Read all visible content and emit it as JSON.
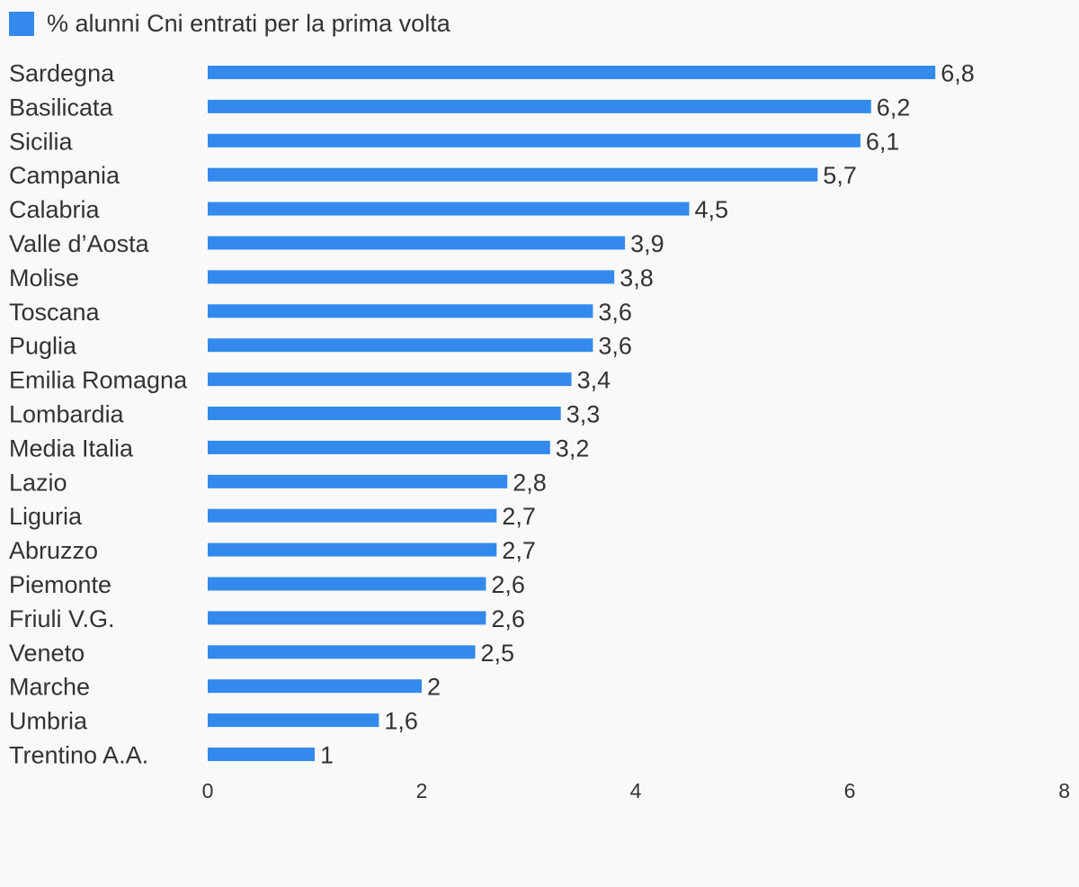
{
  "chart_data": {
    "type": "bar",
    "orientation": "horizontal",
    "legend_position": "top-left",
    "grid": false,
    "title": "",
    "xlabel": "",
    "ylabel": "",
    "xlim": [
      0,
      8
    ],
    "x_ticks": [
      "0",
      "2",
      "4",
      "6",
      "8"
    ],
    "color": "#338aec",
    "series": [
      {
        "name": "% alunni Cni entrati per la prima volta"
      }
    ],
    "categories": [
      "Sardegna",
      "Basilicata",
      "Sicilia",
      "Campania",
      "Calabria",
      "Valle d’Aosta",
      "Molise",
      "Toscana",
      "Puglia",
      "Emilia Romagna",
      "Lombardia",
      "Media Italia",
      "Lazio",
      "Liguria",
      "Abruzzo",
      "Piemonte",
      "Friuli V.G.",
      "Veneto",
      "Marche",
      "Umbria",
      "Trentino A.A."
    ],
    "values": [
      6.8,
      6.2,
      6.1,
      5.7,
      4.5,
      3.9,
      3.8,
      3.6,
      3.6,
      3.4,
      3.3,
      3.2,
      2.8,
      2.7,
      2.7,
      2.6,
      2.6,
      2.5,
      2,
      1.6,
      1
    ],
    "value_labels": [
      "6,8",
      "6,2",
      "6,1",
      "5,7",
      "4,5",
      "3,9",
      "3,8",
      "3,6",
      "3,6",
      "3,4",
      "3,3",
      "3,2",
      "2,8",
      "2,7",
      "2,7",
      "2,6",
      "2,6",
      "2,5",
      "2",
      "1,6",
      "1"
    ]
  }
}
